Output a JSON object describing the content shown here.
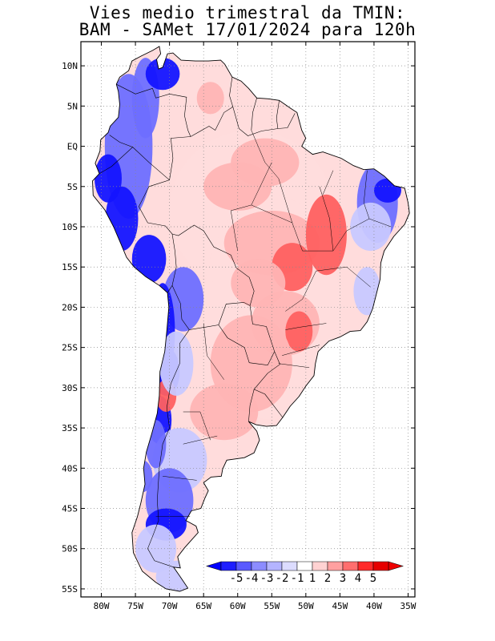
{
  "title_line1": "Vies medio trimestral da TMIN:",
  "title_line2": "BAM - SAMet 17/01/2024  para 120h",
  "map": {
    "lat_ticks": [
      {
        "lat": 10,
        "label": "10N"
      },
      {
        "lat": 5,
        "label": "5N"
      },
      {
        "lat": 0,
        "label": "EQ"
      },
      {
        "lat": -5,
        "label": "5S"
      },
      {
        "lat": -10,
        "label": "10S"
      },
      {
        "lat": -15,
        "label": "15S"
      },
      {
        "lat": -20,
        "label": "20S"
      },
      {
        "lat": -25,
        "label": "25S"
      },
      {
        "lat": -30,
        "label": "30S"
      },
      {
        "lat": -35,
        "label": "35S"
      },
      {
        "lat": -40,
        "label": "40S"
      },
      {
        "lat": -45,
        "label": "45S"
      },
      {
        "lat": -50,
        "label": "50S"
      },
      {
        "lat": -55,
        "label": "55S"
      }
    ],
    "lon_ticks": [
      {
        "lon": -80,
        "label": "80W"
      },
      {
        "lon": -75,
        "label": "75W"
      },
      {
        "lon": -70,
        "label": "70W"
      },
      {
        "lon": -65,
        "label": "65W"
      },
      {
        "lon": -60,
        "label": "60W"
      },
      {
        "lon": -55,
        "label": "55W"
      },
      {
        "lon": -50,
        "label": "50W"
      },
      {
        "lon": -45,
        "label": "45W"
      },
      {
        "lon": -40,
        "label": "40W"
      },
      {
        "lon": -35,
        "label": "35W"
      }
    ],
    "lon_range": [
      -83,
      -34
    ],
    "lat_range": [
      -56,
      13
    ],
    "grid": "dotted"
  },
  "colorbar": {
    "labels": [
      "-5",
      "-4",
      "-3",
      "-2",
      "-1",
      "1",
      "2",
      "3",
      "4",
      "5"
    ],
    "colors": [
      "#1e1eff",
      "#5a5aff",
      "#8c8cff",
      "#b4b4ff",
      "#dcdcff",
      "#ffffff",
      "#ffd2d2",
      "#ffa0a0",
      "#ff6e6e",
      "#ff2a2a",
      "#e60000"
    ],
    "under_color": "#0000ff",
    "over_color": "#ee0000"
  },
  "colors": {
    "strong_blue": "#1414ff",
    "medium_blue": "#6e6eff",
    "light_blue": "#c8c8ff",
    "light_pink": "#ffdcdc",
    "pink": "#ffb4b4",
    "red": "#ff6060"
  }
}
